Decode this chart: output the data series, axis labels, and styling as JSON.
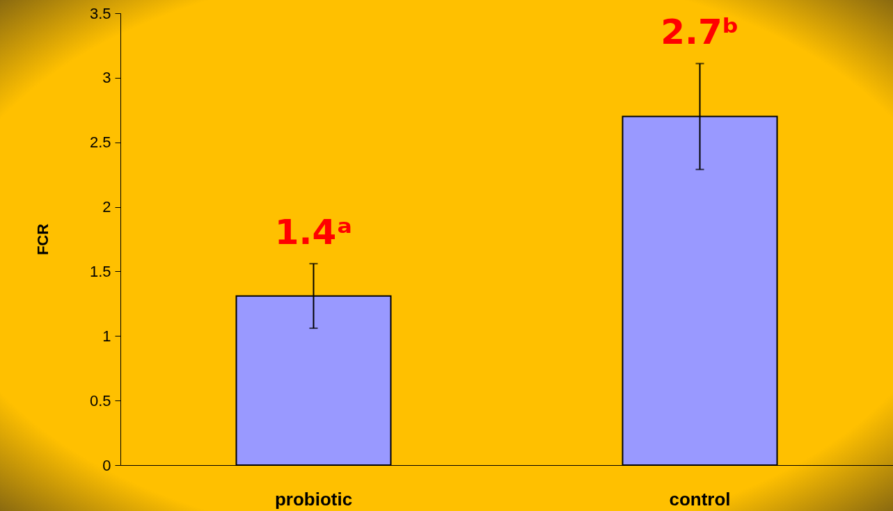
{
  "chart_data": {
    "type": "bar",
    "ylabel": "FCR",
    "categories": [
      "probiotic",
      "control"
    ],
    "values": [
      1.31,
      2.7
    ],
    "errors": [
      0.25,
      0.41
    ],
    "annotations": [
      "1.4ᵃ",
      "2.7ᵇ"
    ],
    "color": "#9999ff",
    "ylim": [
      0,
      3.5
    ],
    "yticks": [
      0,
      0.5,
      1,
      1.5,
      2,
      2.5,
      3,
      3.5
    ],
    "grid": false
  }
}
